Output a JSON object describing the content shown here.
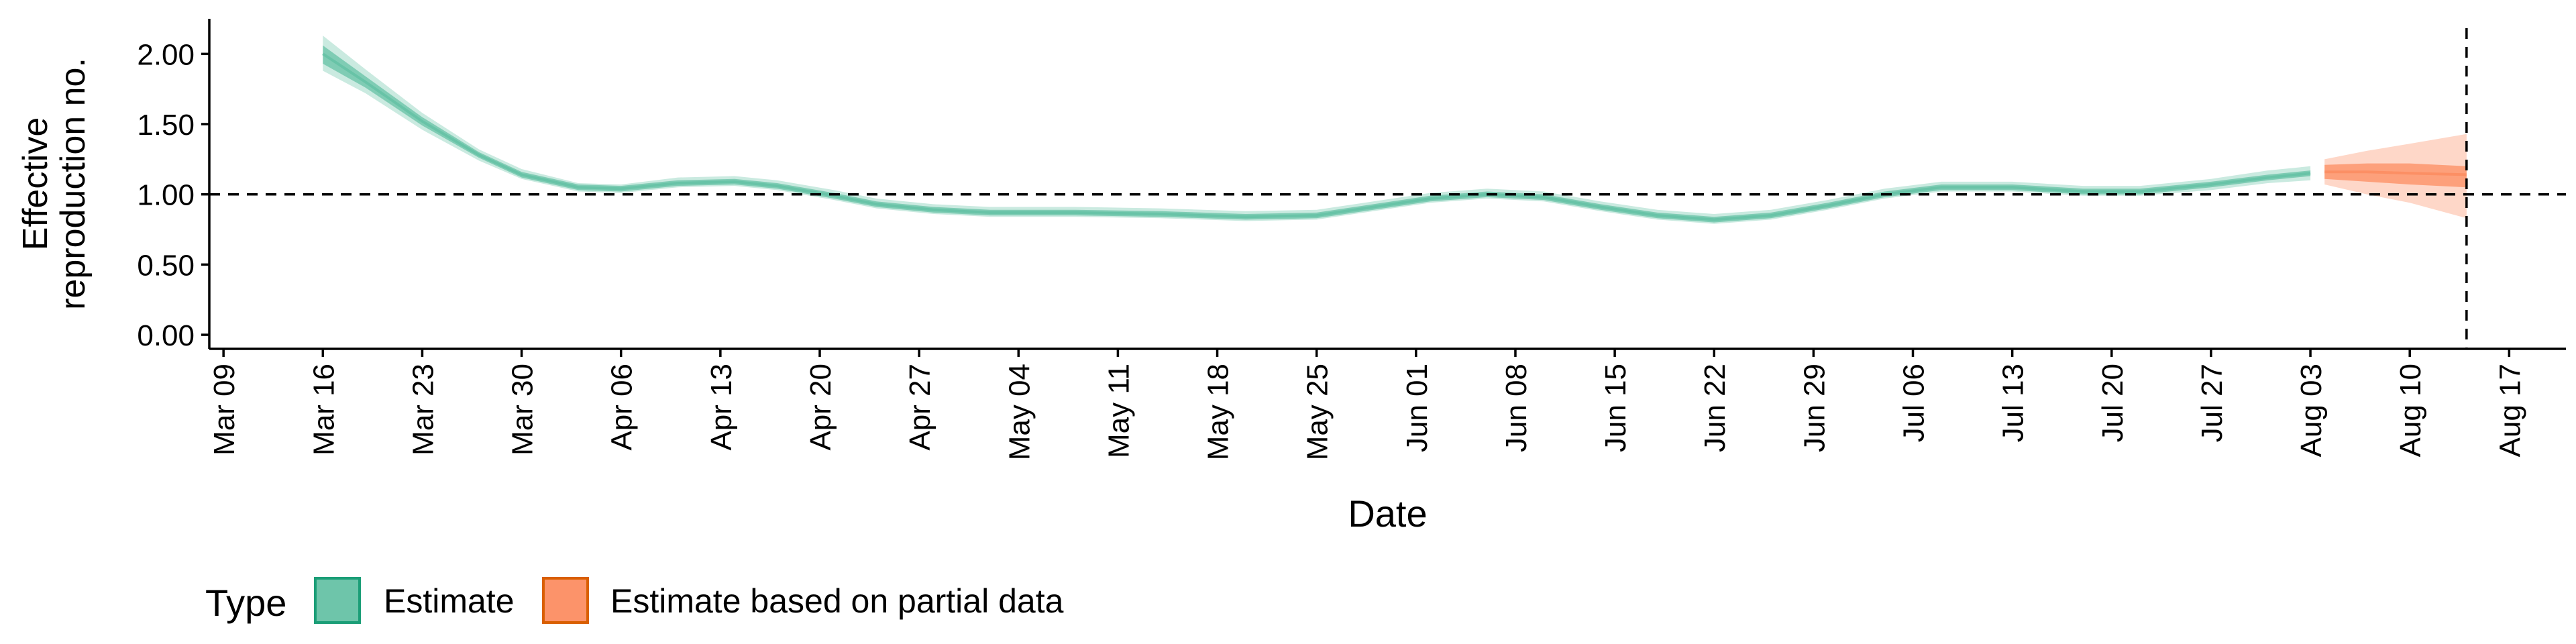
{
  "chart_data": {
    "type": "area",
    "title": "",
    "xlabel": "Date",
    "ylabel": "Effective reproduction no.",
    "ylabel_lines": [
      "Effective",
      "reproduction no."
    ],
    "x_tick_labels": [
      "Mar 09",
      "Mar 16",
      "Mar 23",
      "Mar 30",
      "Apr 06",
      "Apr 13",
      "Apr 20",
      "Apr 27",
      "May 04",
      "May 11",
      "May 18",
      "May 25",
      "Jun 01",
      "Jun 08",
      "Jun 15",
      "Jun 22",
      "Jun 29",
      "Jul 06",
      "Jul 13",
      "Jul 20",
      "Jul 27",
      "Aug 03",
      "Aug 10",
      "Aug 17"
    ],
    "x_tick_dates": [
      "2020-03-09",
      "2020-03-16",
      "2020-03-23",
      "2020-03-30",
      "2020-04-06",
      "2020-04-13",
      "2020-04-20",
      "2020-04-27",
      "2020-05-04",
      "2020-05-11",
      "2020-05-18",
      "2020-05-25",
      "2020-06-01",
      "2020-06-08",
      "2020-06-15",
      "2020-06-22",
      "2020-06-29",
      "2020-07-06",
      "2020-07-13",
      "2020-07-20",
      "2020-07-27",
      "2020-08-03",
      "2020-08-10",
      "2020-08-17"
    ],
    "xlim": [
      "2020-03-08",
      "2020-08-21"
    ],
    "ylim": [
      -0.1,
      2.25
    ],
    "y_ticks": [
      0,
      0.5,
      1.0,
      1.5,
      2.0
    ],
    "y_tick_labels": [
      "0.00",
      "0.50",
      "1.00",
      "1.50",
      "2.00"
    ],
    "hline": 1.0,
    "vline": "2020-08-14",
    "grid": false,
    "legend_position": "bottom",
    "legend_title": "Type",
    "series": [
      {
        "name": "Estimate",
        "color": "#66c2a5",
        "points": [
          {
            "x": "2020-03-16",
            "median": 2.0,
            "lower50": 1.93,
            "upper50": 2.06,
            "lower90": 1.88,
            "upper90": 2.13
          },
          {
            "x": "2020-03-19",
            "median": 1.8,
            "lower50": 1.76,
            "upper50": 1.84,
            "lower90": 1.72,
            "upper90": 1.89
          },
          {
            "x": "2020-03-23",
            "median": 1.52,
            "lower50": 1.49,
            "upper50": 1.55,
            "lower90": 1.46,
            "upper90": 1.58
          },
          {
            "x": "2020-03-27",
            "median": 1.28,
            "lower50": 1.26,
            "upper50": 1.3,
            "lower90": 1.24,
            "upper90": 1.32
          },
          {
            "x": "2020-03-30",
            "median": 1.14,
            "lower50": 1.12,
            "upper50": 1.16,
            "lower90": 1.11,
            "upper90": 1.18
          },
          {
            "x": "2020-04-03",
            "median": 1.05,
            "lower50": 1.03,
            "upper50": 1.07,
            "lower90": 1.02,
            "upper90": 1.08
          },
          {
            "x": "2020-04-06",
            "median": 1.04,
            "lower50": 1.02,
            "upper50": 1.06,
            "lower90": 1.01,
            "upper90": 1.07
          },
          {
            "x": "2020-04-10",
            "median": 1.08,
            "lower50": 1.06,
            "upper50": 1.1,
            "lower90": 1.05,
            "upper90": 1.12
          },
          {
            "x": "2020-04-14",
            "median": 1.09,
            "lower50": 1.07,
            "upper50": 1.11,
            "lower90": 1.06,
            "upper90": 1.13
          },
          {
            "x": "2020-04-17",
            "median": 1.06,
            "lower50": 1.04,
            "upper50": 1.08,
            "lower90": 1.03,
            "upper90": 1.1
          },
          {
            "x": "2020-04-21",
            "median": 0.99,
            "lower50": 0.97,
            "upper50": 1.01,
            "lower90": 0.96,
            "upper90": 1.03
          },
          {
            "x": "2020-04-24",
            "median": 0.93,
            "lower50": 0.91,
            "upper50": 0.95,
            "lower90": 0.9,
            "upper90": 0.97
          },
          {
            "x": "2020-04-28",
            "median": 0.89,
            "lower50": 0.87,
            "upper50": 0.91,
            "lower90": 0.86,
            "upper90": 0.93
          },
          {
            "x": "2020-05-02",
            "median": 0.87,
            "lower50": 0.85,
            "upper50": 0.89,
            "lower90": 0.84,
            "upper90": 0.91
          },
          {
            "x": "2020-05-08",
            "median": 0.87,
            "lower50": 0.85,
            "upper50": 0.89,
            "lower90": 0.84,
            "upper90": 0.91
          },
          {
            "x": "2020-05-14",
            "median": 0.86,
            "lower50": 0.84,
            "upper50": 0.88,
            "lower90": 0.83,
            "upper90": 0.9
          },
          {
            "x": "2020-05-20",
            "median": 0.84,
            "lower50": 0.82,
            "upper50": 0.86,
            "lower90": 0.81,
            "upper90": 0.88
          },
          {
            "x": "2020-05-25",
            "median": 0.85,
            "lower50": 0.83,
            "upper50": 0.87,
            "lower90": 0.82,
            "upper90": 0.89
          },
          {
            "x": "2020-05-29",
            "median": 0.91,
            "lower50": 0.89,
            "upper50": 0.93,
            "lower90": 0.88,
            "upper90": 0.95
          },
          {
            "x": "2020-06-02",
            "median": 0.97,
            "lower50": 0.95,
            "upper50": 0.99,
            "lower90": 0.94,
            "upper90": 1.01
          },
          {
            "x": "2020-06-06",
            "median": 1.0,
            "lower50": 0.98,
            "upper50": 1.02,
            "lower90": 0.97,
            "upper90": 1.04
          },
          {
            "x": "2020-06-10",
            "median": 0.98,
            "lower50": 0.96,
            "upper50": 1.0,
            "lower90": 0.95,
            "upper90": 1.02
          },
          {
            "x": "2020-06-14",
            "median": 0.91,
            "lower50": 0.89,
            "upper50": 0.93,
            "lower90": 0.88,
            "upper90": 0.95
          },
          {
            "x": "2020-06-18",
            "median": 0.85,
            "lower50": 0.83,
            "upper50": 0.87,
            "lower90": 0.82,
            "upper90": 0.89
          },
          {
            "x": "2020-06-22",
            "median": 0.82,
            "lower50": 0.8,
            "upper50": 0.84,
            "lower90": 0.79,
            "upper90": 0.86
          },
          {
            "x": "2020-06-26",
            "median": 0.85,
            "lower50": 0.83,
            "upper50": 0.87,
            "lower90": 0.82,
            "upper90": 0.89
          },
          {
            "x": "2020-06-30",
            "median": 0.92,
            "lower50": 0.9,
            "upper50": 0.94,
            "lower90": 0.89,
            "upper90": 0.96
          },
          {
            "x": "2020-07-04",
            "median": 1.0,
            "lower50": 0.98,
            "upper50": 1.02,
            "lower90": 0.97,
            "upper90": 1.04
          },
          {
            "x": "2020-07-08",
            "median": 1.05,
            "lower50": 1.03,
            "upper50": 1.07,
            "lower90": 1.02,
            "upper90": 1.09
          },
          {
            "x": "2020-07-13",
            "median": 1.05,
            "lower50": 1.03,
            "upper50": 1.07,
            "lower90": 1.02,
            "upper90": 1.09
          },
          {
            "x": "2020-07-18",
            "median": 1.02,
            "lower50": 1.0,
            "upper50": 1.04,
            "lower90": 0.99,
            "upper90": 1.06
          },
          {
            "x": "2020-07-22",
            "median": 1.02,
            "lower50": 1.0,
            "upper50": 1.04,
            "lower90": 0.99,
            "upper90": 1.06
          },
          {
            "x": "2020-07-27",
            "median": 1.07,
            "lower50": 1.05,
            "upper50": 1.09,
            "lower90": 1.03,
            "upper90": 1.11
          },
          {
            "x": "2020-07-31",
            "median": 1.12,
            "lower50": 1.1,
            "upper50": 1.14,
            "lower90": 1.08,
            "upper90": 1.17
          },
          {
            "x": "2020-08-03",
            "median": 1.15,
            "lower50": 1.13,
            "upper50": 1.17,
            "lower90": 1.1,
            "upper90": 1.2
          }
        ]
      },
      {
        "name": "Estimate based on partial data",
        "color": "#fc8d62",
        "points": [
          {
            "x": "2020-08-04",
            "median": 1.16,
            "lower50": 1.11,
            "upper50": 1.21,
            "lower90": 1.07,
            "upper90": 1.25
          },
          {
            "x": "2020-08-07",
            "median": 1.16,
            "lower50": 1.09,
            "upper50": 1.22,
            "lower90": 1.0,
            "upper90": 1.31
          },
          {
            "x": "2020-08-10",
            "median": 1.15,
            "lower50": 1.07,
            "upper50": 1.22,
            "lower90": 0.94,
            "upper90": 1.36
          },
          {
            "x": "2020-08-14",
            "median": 1.14,
            "lower50": 1.05,
            "upper50": 1.2,
            "lower90": 0.83,
            "upper90": 1.43
          }
        ]
      }
    ]
  }
}
